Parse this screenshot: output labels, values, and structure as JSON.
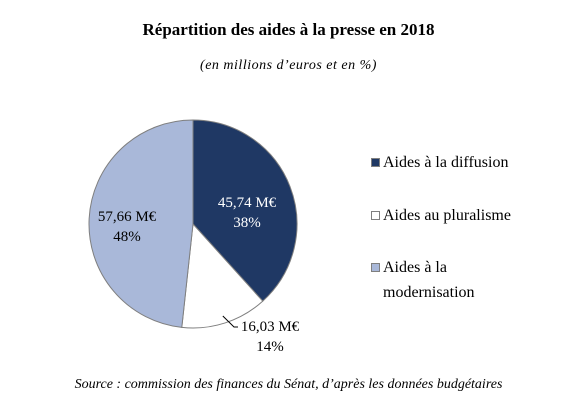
{
  "chart_data": {
    "type": "pie",
    "title": "Répartition des aides à la presse en 2018",
    "subtitle": "(en millions d’euros et en %)",
    "source": "Source : commission des finances du Sénat, d’après les données budgétaires",
    "legend_position": "right",
    "slices": [
      {
        "name": "Aides à la diffusion",
        "value": 45.74,
        "value_label": "45,74 M€",
        "percent_label": "38%",
        "color": "#1f3864",
        "label_color": "#ffffff"
      },
      {
        "name": "Aides au pluralisme",
        "value": 16.03,
        "value_label": "16,03 M€",
        "percent_label": "14%",
        "color": "#ffffff",
        "label_color": "#000000"
      },
      {
        "name": "Aides à la modernisation",
        "value": 57.66,
        "value_label": "57,66 M€",
        "percent_label": "48%",
        "color": "#a9b8d9",
        "label_color": "#000000"
      }
    ]
  }
}
